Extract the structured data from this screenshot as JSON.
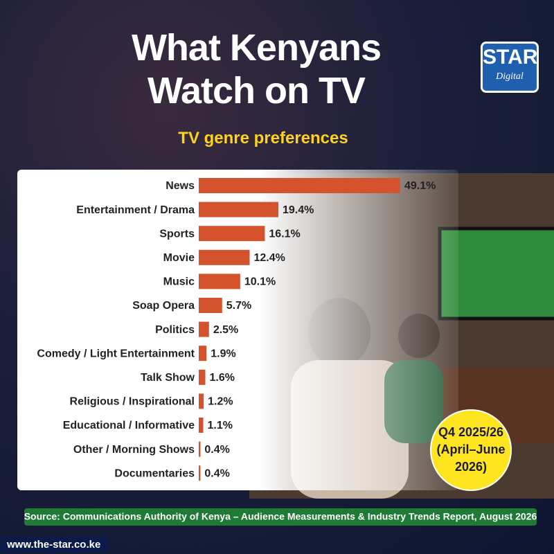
{
  "chart_data": {
    "type": "bar",
    "orientation": "horizontal",
    "title": "What Kenyans Watch on TV",
    "subtitle": "TV genre preferences",
    "categories": [
      "News",
      "Entertainment / Drama",
      "Sports",
      "Movie",
      "Music",
      "Soap Opera",
      "Politics",
      "Comedy / Light Entertainment",
      "Talk Show",
      "Religious / Inspirational",
      "Educational / Informative",
      "Other / Morning Shows",
      "Documentaries"
    ],
    "values": [
      49.1,
      19.4,
      16.1,
      12.4,
      10.1,
      5.7,
      2.5,
      1.9,
      1.6,
      1.2,
      1.1,
      0.4,
      0.4
    ],
    "value_labels": [
      "49.1%",
      "19.4%",
      "16.1%",
      "12.4%",
      "10.1%",
      "5.7%",
      "2.5%",
      "1.9%",
      "1.6%",
      "1.2%",
      "1.1%",
      "0.4%",
      "0.4%"
    ],
    "color": "#d4522c",
    "badge": [
      "Q4 2025/26",
      "(April–June",
      "2026)"
    ],
    "source": "Source: Communications Authority of Kenya – Audience Measurements & Industry Trends Report, August 2026"
  },
  "logo": {
    "name": "STAR",
    "sub": "Digital"
  },
  "footer": "www.the-star.co.ke"
}
